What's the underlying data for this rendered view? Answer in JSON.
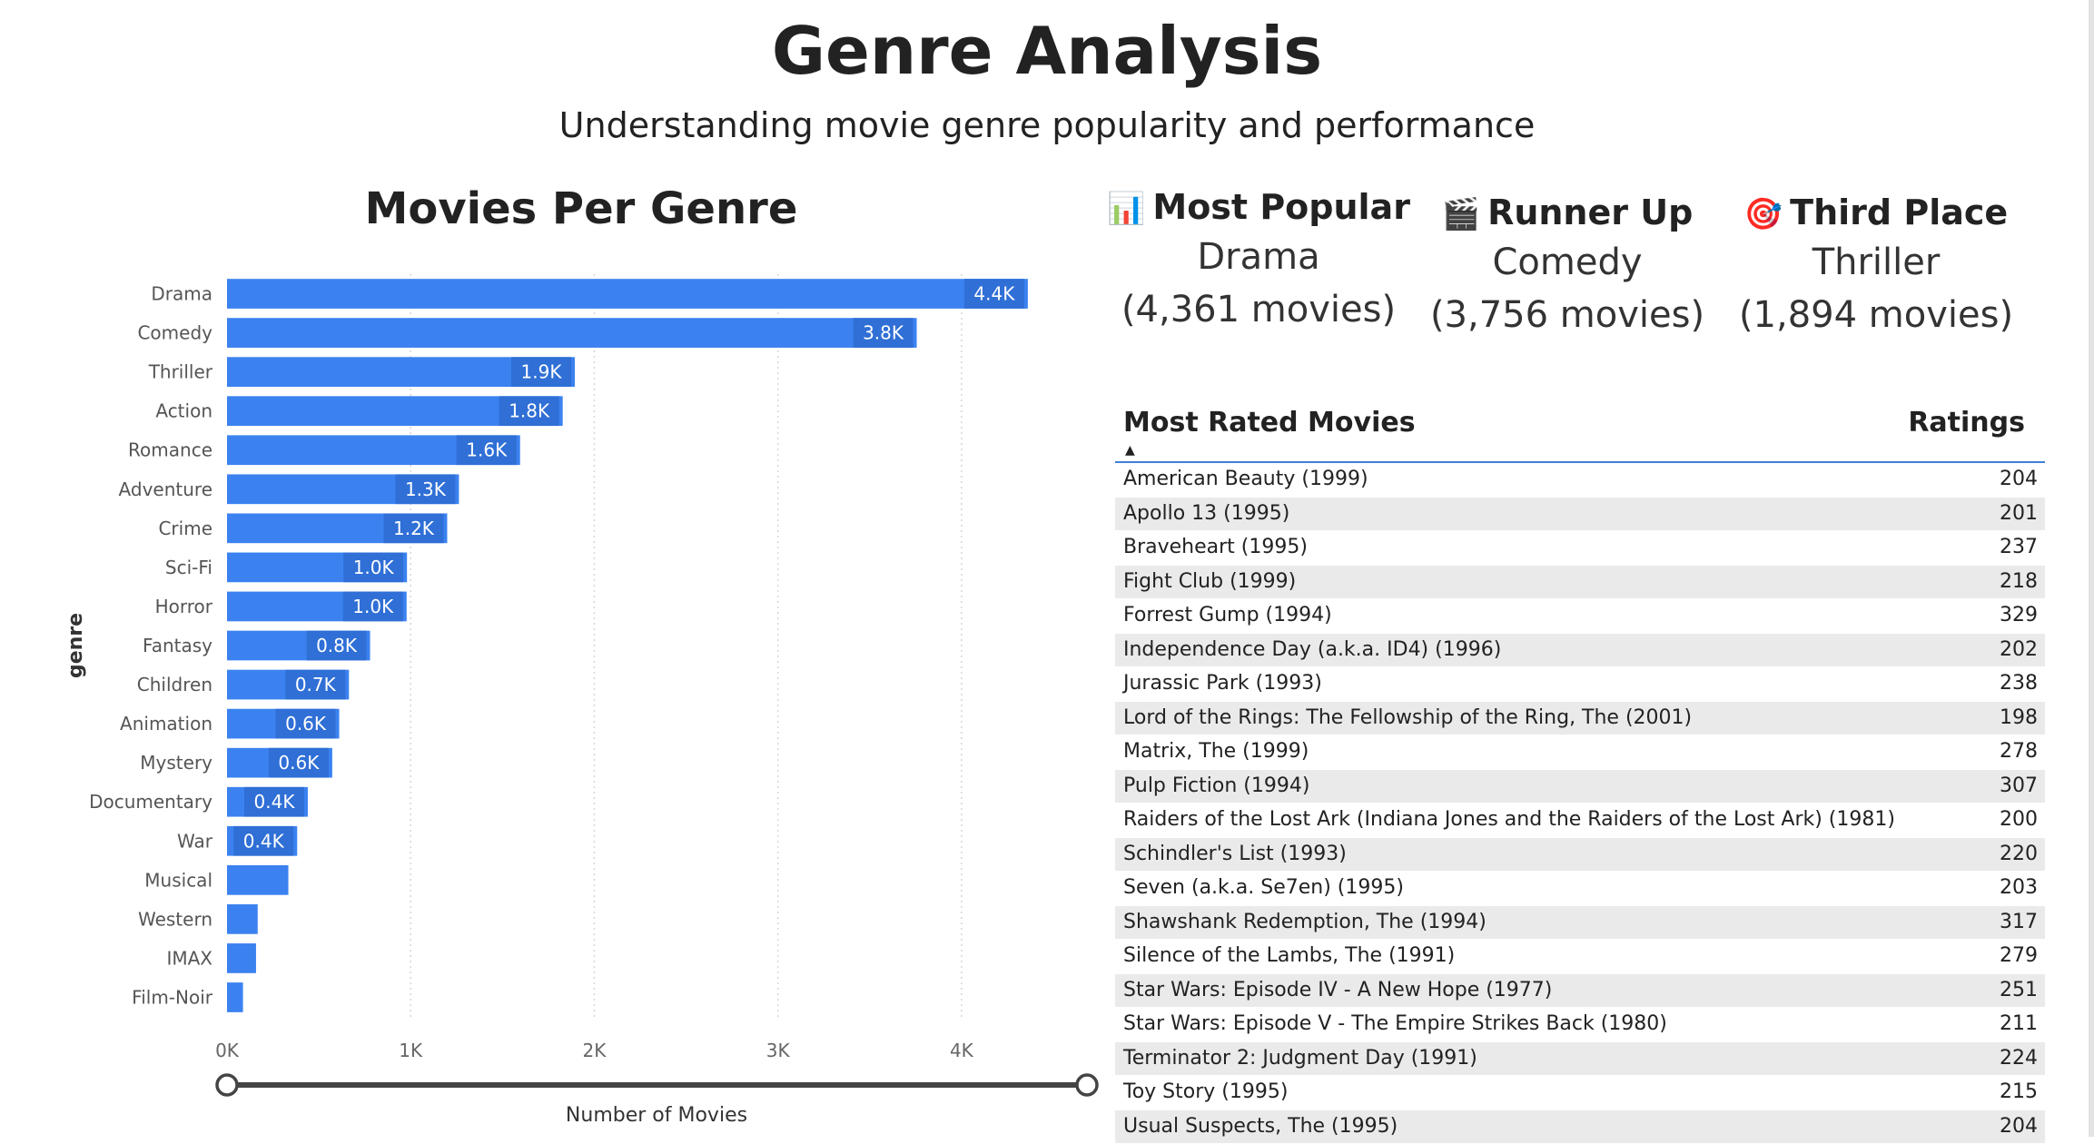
{
  "header": {
    "title": "Genre Analysis",
    "subtitle": "Understanding movie genre popularity and performance"
  },
  "chart_title": "Movies Per Genre",
  "chart_data": {
    "type": "bar",
    "orientation": "horizontal",
    "title": "Movies Per Genre",
    "xlabel": "Number of Movies",
    "ylabel": "genre",
    "categories": [
      "Drama",
      "Comedy",
      "Thriller",
      "Action",
      "Romance",
      "Adventure",
      "Crime",
      "Sci-Fi",
      "Horror",
      "Fantasy",
      "Children",
      "Animation",
      "Mystery",
      "Documentary",
      "War",
      "Musical",
      "Western",
      "IMAX",
      "Film-Noir"
    ],
    "values": [
      4361,
      3756,
      1894,
      1828,
      1596,
      1263,
      1199,
      980,
      978,
      779,
      664,
      611,
      573,
      440,
      382,
      334,
      167,
      158,
      87
    ],
    "data_labels": [
      "4.4K",
      "3.8K",
      "1.9K",
      "1.8K",
      "1.6K",
      "1.3K",
      "1.2K",
      "1.0K",
      "1.0K",
      "0.8K",
      "0.7K",
      "0.6K",
      "0.6K",
      "0.4K",
      "0.4K",
      "",
      "",
      "",
      ""
    ],
    "x_ticks": [
      "0K",
      "1K",
      "2K",
      "3K",
      "4K"
    ],
    "x_tick_values": [
      0,
      1000,
      2000,
      3000,
      4000
    ],
    "xlim": [
      0,
      4500
    ],
    "grid": "vertical dotted",
    "bar_color": "#3b82f0",
    "label_bg_color": "#2f6fd6"
  },
  "kpis": [
    {
      "emoji": "📊",
      "label": "Most Popular",
      "genre": "Drama",
      "count": "(4,361 movies)"
    },
    {
      "emoji": "🎬",
      "label": "Runner Up",
      "genre": "Comedy",
      "count": "(3,756 movies)"
    },
    {
      "emoji": "🎯",
      "label": "Third Place",
      "genre": "Thriller",
      "count": "(1,894 movies)"
    }
  ],
  "table": {
    "headers": {
      "movie": "Most Rated Movies",
      "ratings": "Ratings"
    },
    "sort_icon": "sort-ascending-icon",
    "accent_color": "#3d7fd6",
    "rows": [
      {
        "title": "American Beauty (1999)",
        "ratings": "204"
      },
      {
        "title": "Apollo 13 (1995)",
        "ratings": "201"
      },
      {
        "title": "Braveheart (1995)",
        "ratings": "237"
      },
      {
        "title": "Fight Club (1999)",
        "ratings": "218"
      },
      {
        "title": "Forrest Gump (1994)",
        "ratings": "329"
      },
      {
        "title": "Independence Day (a.k.a. ID4) (1996)",
        "ratings": "202"
      },
      {
        "title": "Jurassic Park (1993)",
        "ratings": "238"
      },
      {
        "title": "Lord of the Rings: The Fellowship of the Ring, The (2001)",
        "ratings": "198"
      },
      {
        "title": "Matrix, The (1999)",
        "ratings": "278"
      },
      {
        "title": "Pulp Fiction (1994)",
        "ratings": "307"
      },
      {
        "title": "Raiders of the Lost Ark (Indiana Jones and the Raiders of the Lost Ark) (1981)",
        "ratings": "200"
      },
      {
        "title": "Schindler's List (1993)",
        "ratings": "220"
      },
      {
        "title": "Seven (a.k.a. Se7en) (1995)",
        "ratings": "203"
      },
      {
        "title": "Shawshank Redemption, The (1994)",
        "ratings": "317"
      },
      {
        "title": "Silence of the Lambs, The (1991)",
        "ratings": "279"
      },
      {
        "title": "Star Wars: Episode IV - A New Hope (1977)",
        "ratings": "251"
      },
      {
        "title": "Star Wars: Episode V - The Empire Strikes Back (1980)",
        "ratings": "211"
      },
      {
        "title": "Terminator 2: Judgment Day (1991)",
        "ratings": "224"
      },
      {
        "title": "Toy Story (1995)",
        "ratings": "215"
      },
      {
        "title": "Usual Suspects, The (1995)",
        "ratings": "204"
      }
    ]
  }
}
